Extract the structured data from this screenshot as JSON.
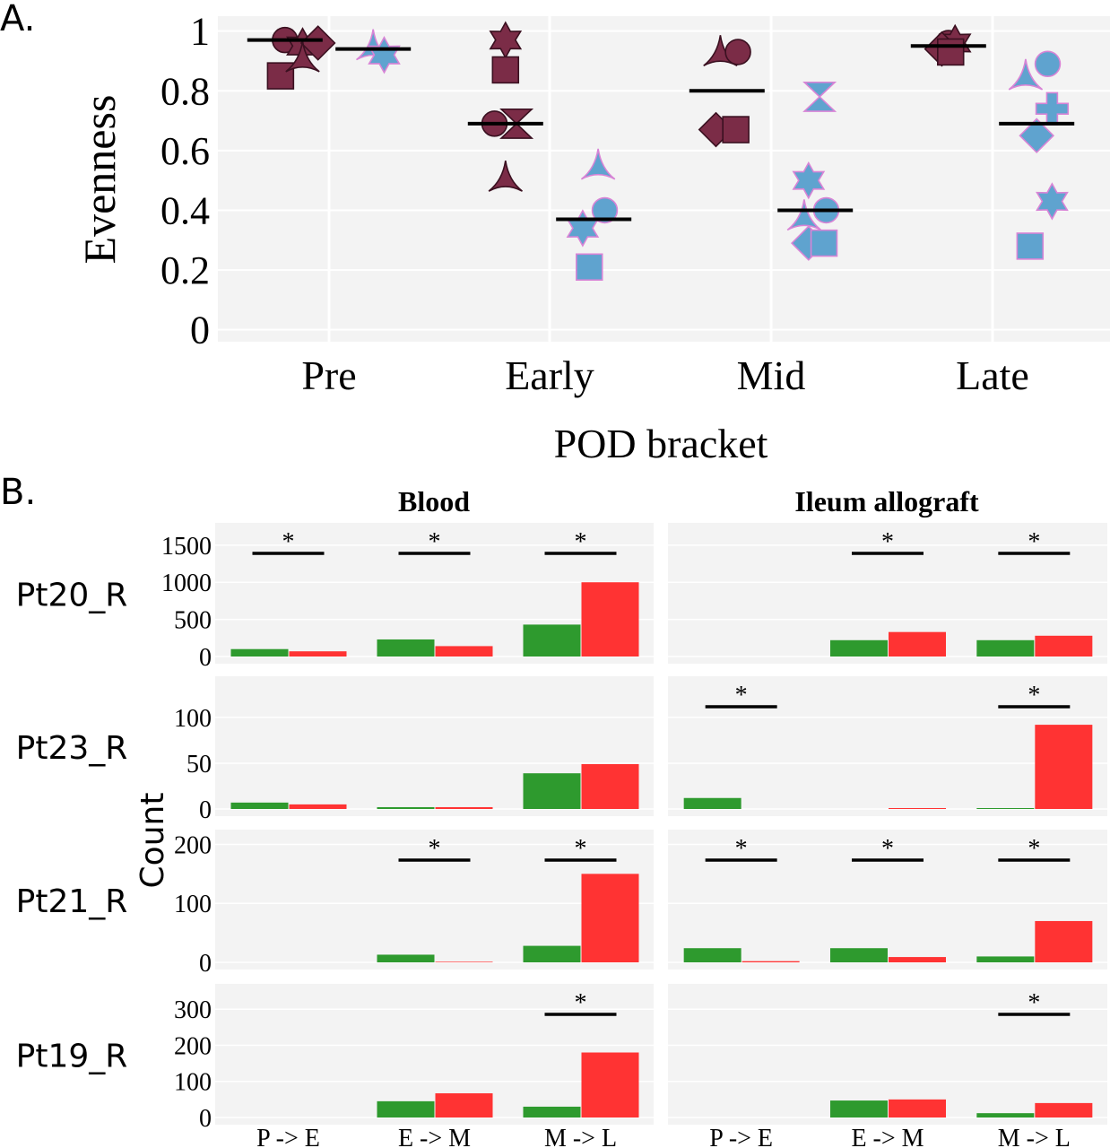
{
  "panel_a": {
    "label": "A.",
    "chart_data": {
      "type": "scatter",
      "xlabel": "POD bracket",
      "ylabel": "Evenness",
      "categories": [
        "Pre",
        "Early",
        "Mid",
        "Late"
      ],
      "yticks": [
        "0",
        "0.2",
        "0.4",
        "0.6",
        "0.8",
        "1"
      ],
      "ylim": [
        -0.04,
        1.05
      ],
      "grid": true,
      "colors": {
        "group1": "#7b2c47",
        "group2": "#5fa3cf",
        "group2_edge": "#d884d6",
        "median_line": "#000000"
      },
      "series": [
        {
          "group": "group1",
          "points": [
            {
              "cat": "Pre",
              "offset": -0.2,
              "y": 0.97,
              "shape": "circle"
            },
            {
              "cat": "Pre",
              "offset": -0.12,
              "y": 0.95,
              "shape": "star"
            },
            {
              "cat": "Pre",
              "offset": -0.05,
              "y": 0.96,
              "shape": "diamond"
            },
            {
              "cat": "Pre",
              "offset": -0.22,
              "y": 0.85,
              "shape": "square"
            },
            {
              "cat": "Pre",
              "offset": -0.12,
              "y": 0.91,
              "shape": "triangle"
            },
            {
              "cat": "Early",
              "offset": -0.2,
              "y": 0.97,
              "shape": "star"
            },
            {
              "cat": "Early",
              "offset": -0.2,
              "y": 0.87,
              "shape": "square"
            },
            {
              "cat": "Early",
              "offset": -0.25,
              "y": 0.69,
              "shape": "circle"
            },
            {
              "cat": "Early",
              "offset": -0.15,
              "y": 0.69,
              "shape": "hourglass"
            },
            {
              "cat": "Early",
              "offset": -0.2,
              "y": 0.51,
              "shape": "triangle"
            },
            {
              "cat": "Mid",
              "offset": -0.23,
              "y": 0.93,
              "shape": "triangle"
            },
            {
              "cat": "Mid",
              "offset": -0.15,
              "y": 0.93,
              "shape": "circle"
            },
            {
              "cat": "Mid",
              "offset": -0.25,
              "y": 0.67,
              "shape": "diamond"
            },
            {
              "cat": "Mid",
              "offset": -0.16,
              "y": 0.67,
              "shape": "square"
            },
            {
              "cat": "Late",
              "offset": -0.2,
              "y": 0.96,
              "shape": "circle"
            },
            {
              "cat": "Late",
              "offset": -0.17,
              "y": 0.96,
              "shape": "star"
            },
            {
              "cat": "Late",
              "offset": -0.23,
              "y": 0.94,
              "shape": "diamond"
            },
            {
              "cat": "Late",
              "offset": -0.19,
              "y": 0.93,
              "shape": "square"
            }
          ],
          "medians": [
            0.97,
            0.69,
            0.8,
            0.95
          ]
        },
        {
          "group": "group2",
          "points": [
            {
              "cat": "Pre",
              "offset": 0.2,
              "y": 0.95,
              "shape": "triangle"
            },
            {
              "cat": "Pre",
              "offset": 0.25,
              "y": 0.92,
              "shape": "star"
            },
            {
              "cat": "Early",
              "offset": 0.22,
              "y": 0.55,
              "shape": "triangle"
            },
            {
              "cat": "Early",
              "offset": 0.25,
              "y": 0.4,
              "shape": "circle"
            },
            {
              "cat": "Early",
              "offset": 0.15,
              "y": 0.34,
              "shape": "star"
            },
            {
              "cat": "Early",
              "offset": 0.18,
              "y": 0.21,
              "shape": "square"
            },
            {
              "cat": "Mid",
              "offset": 0.22,
              "y": 0.78,
              "shape": "hourglass"
            },
            {
              "cat": "Mid",
              "offset": 0.17,
              "y": 0.5,
              "shape": "star"
            },
            {
              "cat": "Mid",
              "offset": 0.15,
              "y": 0.38,
              "shape": "triangle"
            },
            {
              "cat": "Mid",
              "offset": 0.25,
              "y": 0.4,
              "shape": "circle"
            },
            {
              "cat": "Mid",
              "offset": 0.17,
              "y": 0.29,
              "shape": "diamond"
            },
            {
              "cat": "Mid",
              "offset": 0.24,
              "y": 0.29,
              "shape": "square"
            },
            {
              "cat": "Late",
              "offset": 0.25,
              "y": 0.89,
              "shape": "circle"
            },
            {
              "cat": "Late",
              "offset": 0.15,
              "y": 0.85,
              "shape": "triangle"
            },
            {
              "cat": "Late",
              "offset": 0.27,
              "y": 0.74,
              "shape": "cross"
            },
            {
              "cat": "Late",
              "offset": 0.2,
              "y": 0.65,
              "shape": "diamond"
            },
            {
              "cat": "Late",
              "offset": 0.27,
              "y": 0.43,
              "shape": "star"
            },
            {
              "cat": "Late",
              "offset": 0.17,
              "y": 0.28,
              "shape": "square"
            }
          ],
          "medians": [
            0.94,
            0.37,
            0.4,
            0.69
          ]
        }
      ]
    }
  },
  "panel_b": {
    "label": "B.",
    "chart_data": {
      "type": "bar",
      "ylabel": "Count",
      "columns": [
        "Blood",
        "Ileum allograft"
      ],
      "categories": [
        "P -> E",
        "E -> M",
        "M -> L"
      ],
      "colors": {
        "green": "#2e9a2e",
        "red": "#ff3333",
        "sig_line": "#000000"
      },
      "significance_marker": "*",
      "rows": [
        {
          "patient": "Pt20_R",
          "yticks": [
            0,
            500,
            1000,
            1500
          ],
          "ymax": 1800,
          "panels": [
            {
              "column": "Blood",
              "green": [
                100,
                230,
                430
              ],
              "red": [
                70,
                140,
                1000
              ],
              "significant": [
                true,
                true,
                true
              ]
            },
            {
              "column": "Ileum allograft",
              "green": [
                0,
                220,
                220
              ],
              "red": [
                0,
                330,
                280
              ],
              "significant": [
                false,
                true,
                true
              ]
            }
          ]
        },
        {
          "patient": "Pt23_R",
          "yticks": [
            0,
            50,
            100
          ],
          "ymax": 145,
          "panels": [
            {
              "column": "Blood",
              "green": [
                7,
                2,
                39
              ],
              "red": [
                5,
                2,
                49
              ],
              "significant": [
                false,
                false,
                false
              ]
            },
            {
              "column": "Ileum allograft",
              "green": [
                12,
                0,
                1
              ],
              "red": [
                0,
                1,
                92
              ],
              "significant": [
                true,
                false,
                true
              ]
            }
          ]
        },
        {
          "patient": "Pt21_R",
          "yticks": [
            0,
            100,
            200
          ],
          "ymax": 225,
          "panels": [
            {
              "column": "Blood",
              "green": [
                0,
                13,
                28
              ],
              "red": [
                0,
                1,
                150
              ],
              "significant": [
                false,
                true,
                true
              ]
            },
            {
              "column": "Ileum allograft",
              "green": [
                24,
                24,
                10
              ],
              "red": [
                2,
                9,
                70
              ],
              "significant": [
                true,
                true,
                true
              ]
            }
          ]
        },
        {
          "patient": "Pt19_R",
          "yticks": [
            0,
            100,
            200,
            300
          ],
          "ymax": 370,
          "panels": [
            {
              "column": "Blood",
              "green": [
                0,
                45,
                30
              ],
              "red": [
                0,
                67,
                180
              ],
              "significant": [
                false,
                false,
                true
              ]
            },
            {
              "column": "Ileum allograft",
              "green": [
                0,
                47,
                12
              ],
              "red": [
                0,
                50,
                40
              ],
              "significant": [
                false,
                false,
                true
              ]
            }
          ]
        }
      ]
    }
  }
}
